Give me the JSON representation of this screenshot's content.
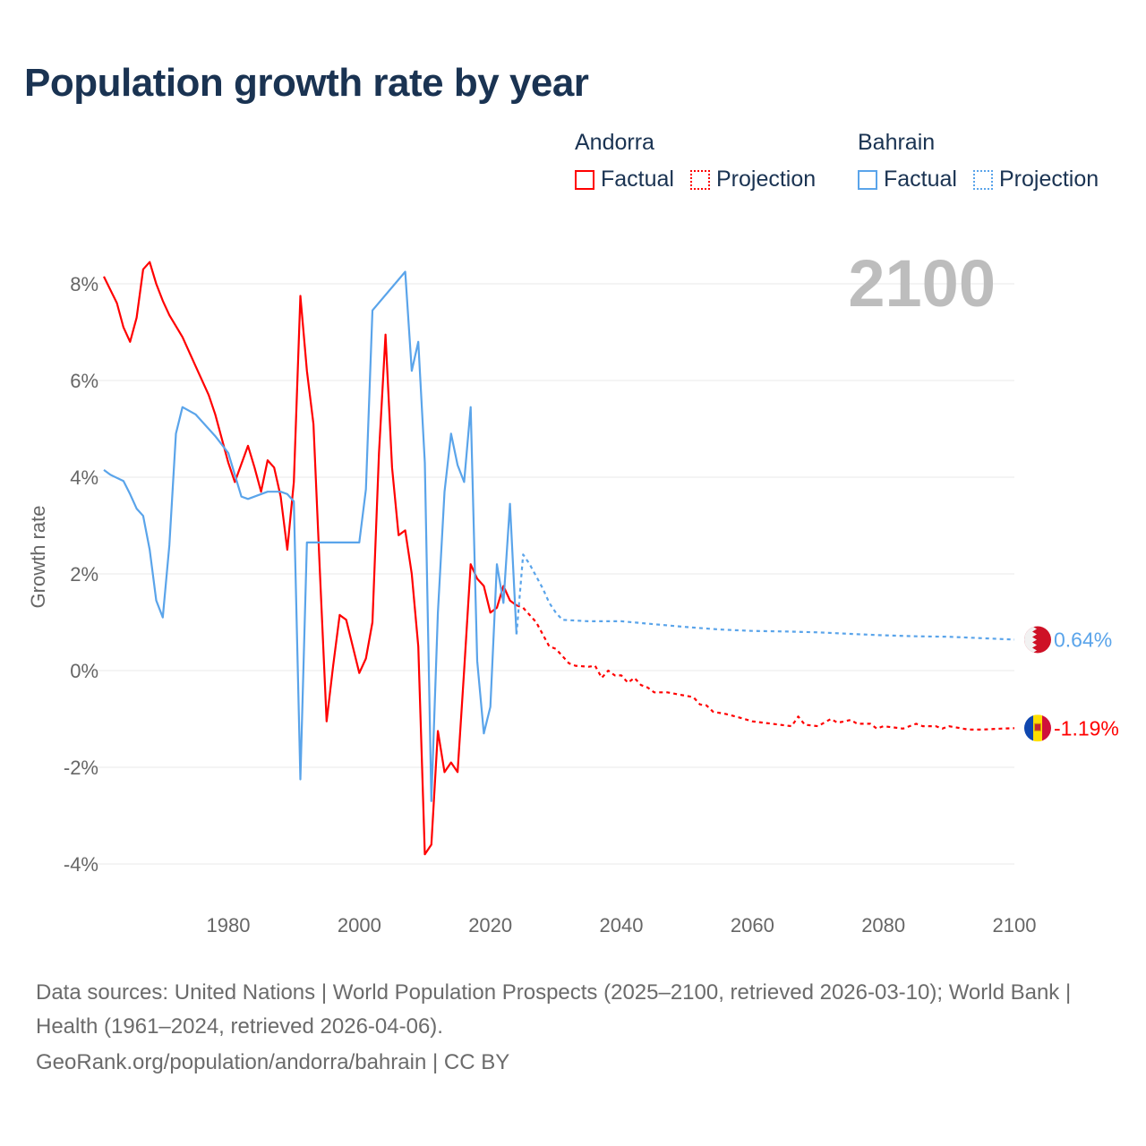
{
  "title": "Population growth rate by year",
  "legend": {
    "groups": [
      {
        "country": "Andorra",
        "factual": "Factual",
        "projection": "Projection",
        "color": "#ff0000"
      },
      {
        "country": "Bahrain",
        "factual": "Factual",
        "projection": "Projection",
        "color": "#5aa4ea"
      }
    ]
  },
  "footer": {
    "sources": "Data sources: United Nations | World Population Prospects (2025–2100, retrieved 2026-03-10); World Bank | Health (1961–2024, retrieved 2026-04-06).",
    "link": "GeoRank.org/population/andorra/bahrain | CC BY"
  },
  "chart_data": {
    "type": "line",
    "title": "Population growth rate by year",
    "xlabel": "",
    "ylabel": "Growth rate",
    "xlim": [
      1961,
      2100
    ],
    "ylim": [
      -4.5,
      8.5
    ],
    "x_ticks": [
      1980,
      2000,
      2020,
      2040,
      2060,
      2080,
      2100
    ],
    "y_ticks": [
      -4,
      -2,
      0,
      2,
      4,
      6,
      8
    ],
    "y_tick_labels": [
      "-4%",
      "-2%",
      "0%",
      "2%",
      "4%",
      "6%",
      "8%"
    ],
    "grid": true,
    "year_label": "2100",
    "series": [
      {
        "name": "Andorra",
        "kind": "factual",
        "color": "#ff0000",
        "end_label": "-1.19%",
        "points": [
          [
            1961,
            8.15
          ],
          [
            1963,
            7.6
          ],
          [
            1964,
            7.1
          ],
          [
            1965,
            6.8
          ],
          [
            1966,
            7.3
          ],
          [
            1967,
            8.3
          ],
          [
            1968,
            8.45
          ],
          [
            1969,
            8.0
          ],
          [
            1970,
            7.65
          ],
          [
            1971,
            7.35
          ],
          [
            1973,
            6.9
          ],
          [
            1975,
            6.3
          ],
          [
            1977,
            5.7
          ],
          [
            1978,
            5.3
          ],
          [
            1980,
            4.3
          ],
          [
            1981,
            3.9
          ],
          [
            1983,
            4.65
          ],
          [
            1984,
            4.2
          ],
          [
            1985,
            3.7
          ],
          [
            1986,
            4.35
          ],
          [
            1987,
            4.2
          ],
          [
            1988,
            3.6
          ],
          [
            1989,
            2.5
          ],
          [
            1990,
            3.9
          ],
          [
            1991,
            7.75
          ],
          [
            1992,
            6.2
          ],
          [
            1993,
            5.1
          ],
          [
            1994,
            2.0
          ],
          [
            1995,
            -1.05
          ],
          [
            1996,
            0.1
          ],
          [
            1997,
            1.15
          ],
          [
            1998,
            1.05
          ],
          [
            1999,
            0.5
          ],
          [
            2000,
            -0.05
          ],
          [
            2001,
            0.25
          ],
          [
            2002,
            1.0
          ],
          [
            2003,
            4.5
          ],
          [
            2004,
            6.95
          ],
          [
            2005,
            4.2
          ],
          [
            2006,
            2.8
          ],
          [
            2007,
            2.9
          ],
          [
            2008,
            2.0
          ],
          [
            2009,
            0.5
          ],
          [
            2010,
            -3.8
          ],
          [
            2011,
            -3.6
          ],
          [
            2012,
            -1.25
          ],
          [
            2013,
            -2.1
          ],
          [
            2014,
            -1.9
          ],
          [
            2015,
            -2.1
          ],
          [
            2016,
            0.0
          ],
          [
            2017,
            2.2
          ],
          [
            2018,
            1.9
          ],
          [
            2019,
            1.75
          ],
          [
            2020,
            1.2
          ],
          [
            2021,
            1.3
          ],
          [
            2022,
            1.75
          ],
          [
            2023,
            1.45
          ],
          [
            2024,
            1.35
          ]
        ]
      },
      {
        "name": "Andorra",
        "kind": "projection",
        "color": "#ff0000",
        "points": [
          [
            2024,
            1.35
          ],
          [
            2025,
            1.3
          ],
          [
            2026,
            1.15
          ],
          [
            2027,
            1.0
          ],
          [
            2028,
            0.75
          ],
          [
            2029,
            0.5
          ],
          [
            2030,
            0.45
          ],
          [
            2031,
            0.3
          ],
          [
            2032,
            0.15
          ],
          [
            2033,
            0.1
          ],
          [
            2035,
            0.08
          ],
          [
            2036,
            0.1
          ],
          [
            2037,
            -0.15
          ],
          [
            2038,
            0.0
          ],
          [
            2039,
            -0.1
          ],
          [
            2040,
            -0.1
          ],
          [
            2041,
            -0.25
          ],
          [
            2042,
            -0.15
          ],
          [
            2043,
            -0.3
          ],
          [
            2044,
            -0.35
          ],
          [
            2045,
            -0.45
          ],
          [
            2047,
            -0.45
          ],
          [
            2049,
            -0.5
          ],
          [
            2051,
            -0.55
          ],
          [
            2052,
            -0.7
          ],
          [
            2053,
            -0.72
          ],
          [
            2054,
            -0.85
          ],
          [
            2056,
            -0.9
          ],
          [
            2058,
            -0.97
          ],
          [
            2060,
            -1.05
          ],
          [
            2063,
            -1.1
          ],
          [
            2066,
            -1.15
          ],
          [
            2067,
            -0.95
          ],
          [
            2068,
            -1.12
          ],
          [
            2070,
            -1.15
          ],
          [
            2072,
            -1.0
          ],
          [
            2073,
            -1.08
          ],
          [
            2075,
            -1.02
          ],
          [
            2076,
            -1.1
          ],
          [
            2078,
            -1.1
          ],
          [
            2079,
            -1.2
          ],
          [
            2080,
            -1.15
          ],
          [
            2083,
            -1.2
          ],
          [
            2085,
            -1.1
          ],
          [
            2086,
            -1.15
          ],
          [
            2088,
            -1.15
          ],
          [
            2089,
            -1.2
          ],
          [
            2090,
            -1.15
          ],
          [
            2093,
            -1.22
          ],
          [
            2095,
            -1.22
          ],
          [
            2098,
            -1.2
          ],
          [
            2100,
            -1.19
          ]
        ]
      },
      {
        "name": "Bahrain",
        "kind": "factual",
        "color": "#5aa4ea",
        "end_label": "0.64%",
        "points": [
          [
            1961,
            4.15
          ],
          [
            1962,
            4.05
          ],
          [
            1964,
            3.92
          ],
          [
            1965,
            3.65
          ],
          [
            1966,
            3.35
          ],
          [
            1967,
            3.2
          ],
          [
            1968,
            2.5
          ],
          [
            1969,
            1.45
          ],
          [
            1970,
            1.1
          ],
          [
            1971,
            2.6
          ],
          [
            1972,
            4.9
          ],
          [
            1973,
            5.45
          ],
          [
            1975,
            5.3
          ],
          [
            1978,
            4.85
          ],
          [
            1980,
            4.5
          ],
          [
            1982,
            3.6
          ],
          [
            1983,
            3.55
          ],
          [
            1986,
            3.7
          ],
          [
            1988,
            3.7
          ],
          [
            1989,
            3.65
          ],
          [
            1990,
            3.5
          ],
          [
            1991,
            -2.25
          ],
          [
            1992,
            2.65
          ],
          [
            2000,
            2.65
          ],
          [
            2001,
            3.75
          ],
          [
            2002,
            7.45
          ],
          [
            2007,
            8.25
          ],
          [
            2008,
            6.2
          ],
          [
            2009,
            6.8
          ],
          [
            2010,
            4.3
          ],
          [
            2011,
            -2.7
          ],
          [
            2012,
            1.2
          ],
          [
            2013,
            3.7
          ],
          [
            2014,
            4.9
          ],
          [
            2015,
            4.25
          ],
          [
            2016,
            3.9
          ],
          [
            2017,
            5.45
          ],
          [
            2018,
            0.2
          ],
          [
            2019,
            -1.3
          ],
          [
            2020,
            -0.75
          ],
          [
            2021,
            2.2
          ],
          [
            2022,
            1.4
          ],
          [
            2023,
            3.45
          ],
          [
            2024,
            0.75
          ]
        ]
      },
      {
        "name": "Bahrain",
        "kind": "projection",
        "color": "#5aa4ea",
        "points": [
          [
            2024,
            0.75
          ],
          [
            2025,
            2.4
          ],
          [
            2026,
            2.2
          ],
          [
            2027,
            1.95
          ],
          [
            2028,
            1.7
          ],
          [
            2029,
            1.4
          ],
          [
            2030,
            1.2
          ],
          [
            2031,
            1.05
          ],
          [
            2035,
            1.02
          ],
          [
            2040,
            1.02
          ],
          [
            2045,
            0.96
          ],
          [
            2050,
            0.9
          ],
          [
            2055,
            0.85
          ],
          [
            2060,
            0.82
          ],
          [
            2065,
            0.81
          ],
          [
            2070,
            0.79
          ],
          [
            2075,
            0.76
          ],
          [
            2080,
            0.73
          ],
          [
            2085,
            0.71
          ],
          [
            2090,
            0.7
          ],
          [
            2095,
            0.67
          ],
          [
            2100,
            0.64
          ]
        ]
      }
    ]
  }
}
